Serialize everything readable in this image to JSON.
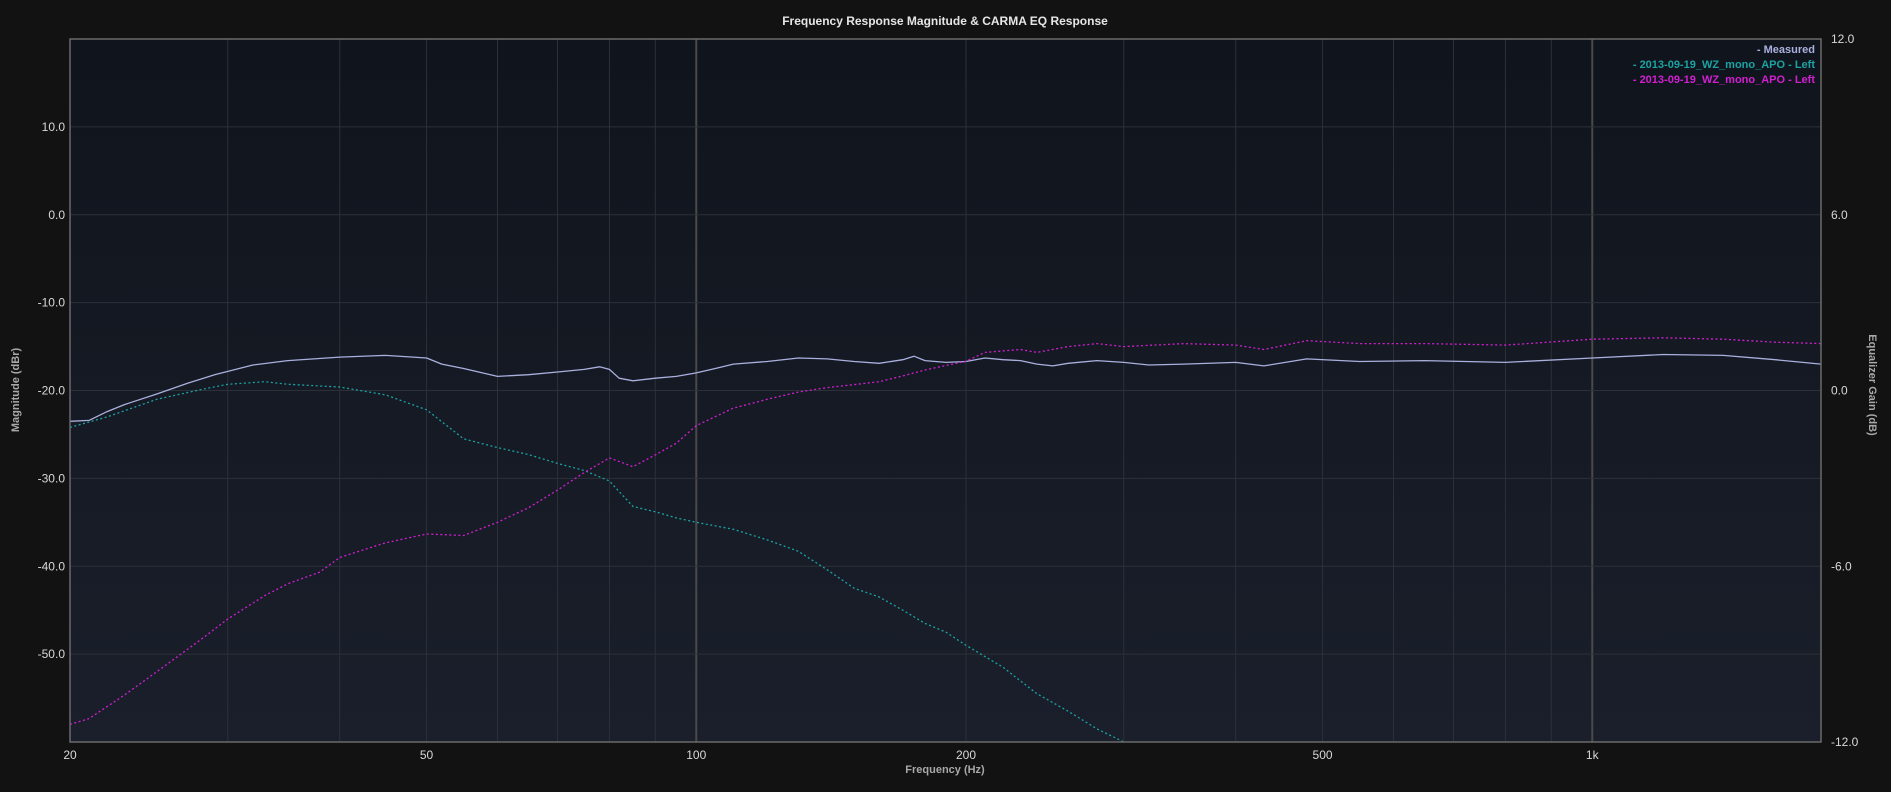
{
  "chart_data": {
    "type": "line",
    "title": "Frequency Response Magnitude & CARMA EQ Response",
    "xlabel": "Frequency (Hz)",
    "ylabel": "Magnitude (dBr)",
    "y2label": "Equalizer Gain (dB)",
    "x_scale": "log",
    "xlim": [
      20,
      1800
    ],
    "ylim": [
      -60,
      20
    ],
    "y2lim": [
      -12,
      12
    ],
    "grid": true,
    "legend_position": "top-right",
    "x_ticks": [
      {
        "value": 20,
        "label": "20"
      },
      {
        "value": 50,
        "label": "50"
      },
      {
        "value": 100,
        "label": "100"
      },
      {
        "value": 200,
        "label": "200"
      },
      {
        "value": 500,
        "label": "500"
      },
      {
        "value": 1000,
        "label": "1k"
      }
    ],
    "y_ticks": [
      {
        "value": 10,
        "label": "10.0"
      },
      {
        "value": 0,
        "label": "0.0"
      },
      {
        "value": -10,
        "label": "-10.0"
      },
      {
        "value": -20,
        "label": "-20.0"
      },
      {
        "value": -30,
        "label": "-30.0"
      },
      {
        "value": -40,
        "label": "-40.0"
      },
      {
        "value": -50,
        "label": "-50.0"
      }
    ],
    "y2_ticks": [
      {
        "value": 12,
        "label": "12.0"
      },
      {
        "value": 6,
        "label": "6.0"
      },
      {
        "value": 0,
        "label": "0.0"
      },
      {
        "value": -6,
        "label": "-6.0"
      },
      {
        "value": -12,
        "label": "-12.0"
      }
    ],
    "series": [
      {
        "name": "- Measured",
        "color": "#aab0de",
        "dash": "solid",
        "axis": "left",
        "points": [
          [
            20,
            -23.5
          ],
          [
            21,
            -23.4
          ],
          [
            22,
            -22.4
          ],
          [
            23,
            -21.6
          ],
          [
            25,
            -20.4
          ],
          [
            27,
            -19.2
          ],
          [
            29,
            -18.2
          ],
          [
            32,
            -17.1
          ],
          [
            35,
            -16.6
          ],
          [
            40,
            -16.2
          ],
          [
            45,
            -16.0
          ],
          [
            50,
            -16.3
          ],
          [
            52,
            -17
          ],
          [
            55,
            -17.5
          ],
          [
            60,
            -18.4
          ],
          [
            65,
            -18.2
          ],
          [
            70,
            -17.9
          ],
          [
            75,
            -17.6
          ],
          [
            78,
            -17.3
          ],
          [
            80,
            -17.6
          ],
          [
            82,
            -18.6
          ],
          [
            85,
            -18.9
          ],
          [
            90,
            -18.6
          ],
          [
            95,
            -18.4
          ],
          [
            100,
            -18.0
          ],
          [
            105,
            -17.5
          ],
          [
            110,
            -17.0
          ],
          [
            120,
            -16.7
          ],
          [
            130,
            -16.3
          ],
          [
            140,
            -16.4
          ],
          [
            150,
            -16.7
          ],
          [
            160,
            -16.9
          ],
          [
            170,
            -16.5
          ],
          [
            175,
            -16.1
          ],
          [
            180,
            -16.6
          ],
          [
            190,
            -16.8
          ],
          [
            200,
            -16.7
          ],
          [
            210,
            -16.3
          ],
          [
            220,
            -16.5
          ],
          [
            230,
            -16.6
          ],
          [
            240,
            -17.0
          ],
          [
            250,
            -17.2
          ],
          [
            260,
            -16.9
          ],
          [
            280,
            -16.6
          ],
          [
            300,
            -16.8
          ],
          [
            320,
            -17.1
          ],
          [
            350,
            -17.0
          ],
          [
            400,
            -16.8
          ],
          [
            430,
            -17.2
          ],
          [
            480,
            -16.4
          ],
          [
            550,
            -16.7
          ],
          [
            650,
            -16.6
          ],
          [
            800,
            -16.8
          ],
          [
            1000,
            -16.3
          ],
          [
            1200,
            -15.9
          ],
          [
            1400,
            -16.0
          ],
          [
            1600,
            -16.5
          ],
          [
            1800,
            -17.0
          ]
        ]
      },
      {
        "name": "- 2013-09-19_WZ_mono_APO - Left",
        "color": "#1aa3a3",
        "dash": "dotted",
        "axis": "left",
        "points": [
          [
            20,
            -24.2
          ],
          [
            22,
            -23.0
          ],
          [
            25,
            -21.0
          ],
          [
            28,
            -19.9
          ],
          [
            30,
            -19.3
          ],
          [
            33,
            -19.0
          ],
          [
            35,
            -19.3
          ],
          [
            40,
            -19.6
          ],
          [
            45,
            -20.5
          ],
          [
            50,
            -22.2
          ],
          [
            55,
            -25.5
          ],
          [
            60,
            -26.5
          ],
          [
            65,
            -27.3
          ],
          [
            70,
            -28.3
          ],
          [
            75,
            -29.1
          ],
          [
            80,
            -30.3
          ],
          [
            85,
            -33.2
          ],
          [
            90,
            -33.8
          ],
          [
            95,
            -34.5
          ],
          [
            100,
            -35.0
          ],
          [
            110,
            -35.8
          ],
          [
            120,
            -37.0
          ],
          [
            130,
            -38.3
          ],
          [
            140,
            -40.4
          ],
          [
            150,
            -42.5
          ],
          [
            160,
            -43.5
          ],
          [
            170,
            -45.0
          ],
          [
            180,
            -46.5
          ],
          [
            190,
            -47.5
          ],
          [
            200,
            -49.0
          ],
          [
            220,
            -51.5
          ],
          [
            240,
            -54.5
          ],
          [
            260,
            -56.5
          ],
          [
            280,
            -58.5
          ],
          [
            300,
            -60.0
          ]
        ]
      },
      {
        "name": "- 2013-09-19_WZ_mono_APO - Left",
        "color": "#d21fd2",
        "dash": "dotted",
        "axis": "right",
        "points": [
          [
            20,
            -11.4
          ],
          [
            21,
            -11.2
          ],
          [
            23,
            -10.4
          ],
          [
            25,
            -9.6
          ],
          [
            28,
            -8.5
          ],
          [
            30,
            -7.8
          ],
          [
            33,
            -7.0
          ],
          [
            35,
            -6.6
          ],
          [
            38,
            -6.2
          ],
          [
            40,
            -5.7
          ],
          [
            45,
            -5.2
          ],
          [
            50,
            -4.9
          ],
          [
            55,
            -4.95
          ],
          [
            60,
            -4.5
          ],
          [
            65,
            -4.0
          ],
          [
            70,
            -3.4
          ],
          [
            75,
            -2.8
          ],
          [
            80,
            -2.3
          ],
          [
            85,
            -2.6
          ],
          [
            90,
            -2.2
          ],
          [
            95,
            -1.8
          ],
          [
            100,
            -1.2
          ],
          [
            110,
            -0.6
          ],
          [
            120,
            -0.3
          ],
          [
            130,
            -0.05
          ],
          [
            140,
            0.1
          ],
          [
            150,
            0.2
          ],
          [
            160,
            0.3
          ],
          [
            170,
            0.5
          ],
          [
            180,
            0.7
          ],
          [
            200,
            1.0
          ],
          [
            210,
            1.3
          ],
          [
            230,
            1.4
          ],
          [
            240,
            1.3
          ],
          [
            260,
            1.5
          ],
          [
            280,
            1.6
          ],
          [
            300,
            1.5
          ],
          [
            350,
            1.6
          ],
          [
            400,
            1.55
          ],
          [
            430,
            1.4
          ],
          [
            480,
            1.7
          ],
          [
            550,
            1.6
          ],
          [
            650,
            1.6
          ],
          [
            800,
            1.55
          ],
          [
            1000,
            1.75
          ],
          [
            1200,
            1.8
          ],
          [
            1400,
            1.75
          ],
          [
            1600,
            1.65
          ],
          [
            1800,
            1.6
          ]
        ]
      }
    ]
  }
}
